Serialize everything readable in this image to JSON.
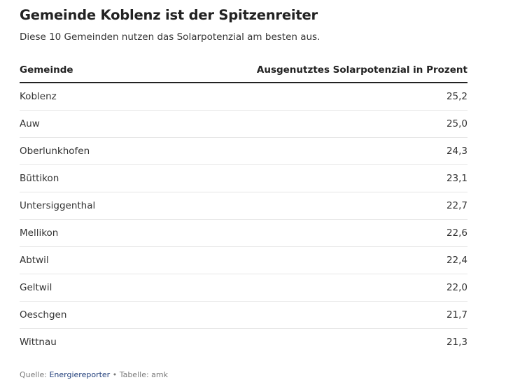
{
  "title": "Gemeinde Koblenz ist der Spitzenreiter",
  "subtitle": "Diese 10 Gemeinden nutzen das Solarpotenzial am besten aus.",
  "footer": {
    "source_prefix": "Quelle: ",
    "source_link": "Energiereporter",
    "separator": " • ",
    "credit": "Tabelle: amk"
  },
  "chart_data": {
    "type": "table",
    "columns": [
      "Gemeinde",
      "Ausgenutztes Solarpotenzial in Prozent"
    ],
    "rows": [
      [
        "Koblenz",
        "25,2"
      ],
      [
        "Auw",
        "25,0"
      ],
      [
        "Oberlunkhofen",
        "24,3"
      ],
      [
        "Büttikon",
        "23,1"
      ],
      [
        "Untersiggenthal",
        "22,7"
      ],
      [
        "Mellikon",
        "22,6"
      ],
      [
        "Abtwil",
        "22,4"
      ],
      [
        "Geltwil",
        "22,0"
      ],
      [
        "Oeschgen",
        "21,7"
      ],
      [
        "Wittnau",
        "21,3"
      ]
    ]
  }
}
